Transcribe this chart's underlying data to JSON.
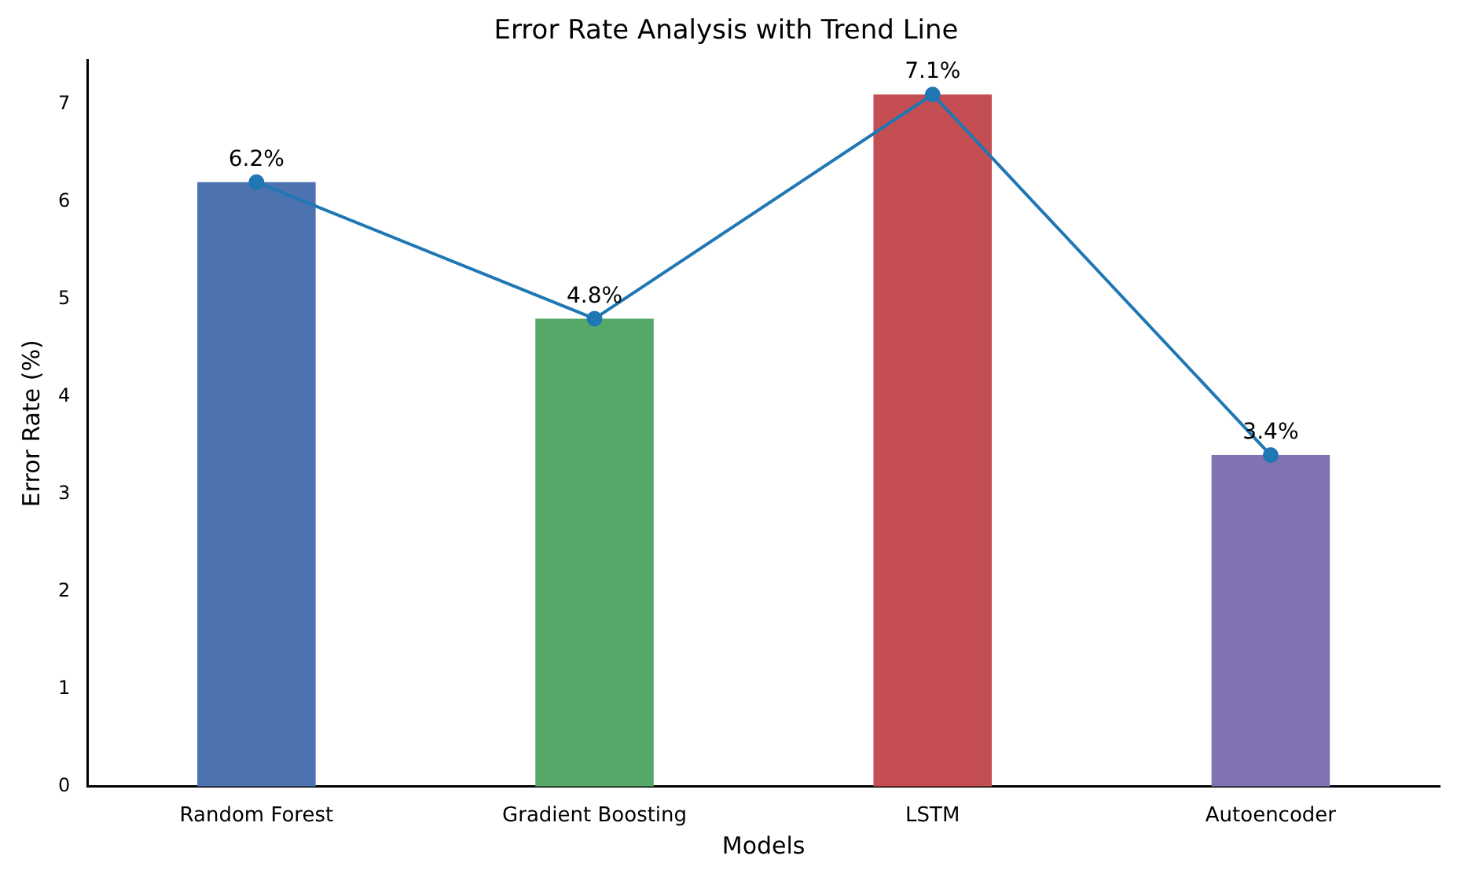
{
  "chart_data": {
    "type": "bar",
    "title": "Error Rate Analysis with Trend Line",
    "xlabel": "Models",
    "ylabel": "Error Rate (%)",
    "categories": [
      "Random Forest",
      "Gradient Boosting",
      "LSTM",
      "Autoencoder"
    ],
    "series": [
      {
        "colors": [
          "#4c72b0",
          "#55a868",
          "#c44e52",
          "#8172b2"
        ],
        "values": [
          6.2,
          4.8,
          7.1,
          3.4
        ],
        "value_labels": [
          "6.2%",
          "4.8%",
          "7.1%",
          "3.4%"
        ]
      },
      {
        "type": "line",
        "color": "#1f77b4",
        "values": [
          6.2,
          4.8,
          7.1,
          3.4
        ],
        "marker": "circle",
        "line_style": "solid"
      }
    ],
    "ylim": [
      0,
      7.45
    ],
    "yticks": [
      0,
      1,
      2,
      3,
      4,
      5,
      6,
      7
    ],
    "grid": false,
    "legend": false
  }
}
